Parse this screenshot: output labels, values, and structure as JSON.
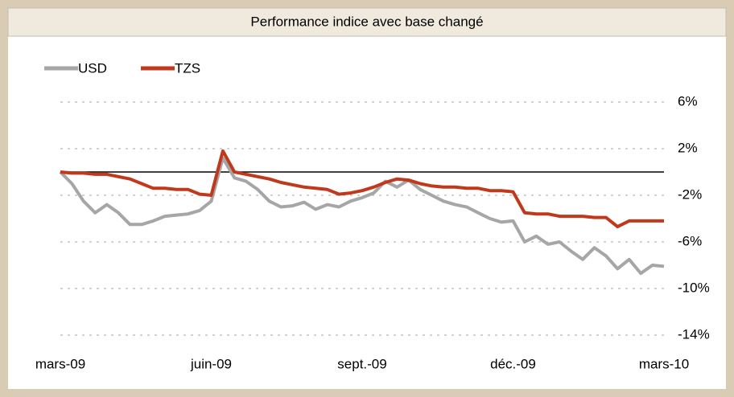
{
  "chart_data": {
    "type": "line",
    "title": "Performance indice avec base changé",
    "categories": [
      "mars-09",
      null,
      null,
      null,
      null,
      null,
      null,
      null,
      null,
      null,
      null,
      null,
      null,
      "juin-09",
      null,
      null,
      null,
      null,
      null,
      null,
      null,
      null,
      null,
      null,
      null,
      null,
      "sept.-09",
      null,
      null,
      null,
      null,
      null,
      null,
      null,
      null,
      null,
      null,
      null,
      null,
      "déc.-09",
      null,
      null,
      null,
      null,
      null,
      null,
      null,
      null,
      null,
      null,
      null,
      null,
      "mars-10"
    ],
    "series": [
      {
        "name": "USD",
        "color": "#a6a6a6",
        "values": [
          0,
          -1,
          -2.5,
          -3.5,
          -2.8,
          -3.5,
          -4.5,
          -4.5,
          -4.2,
          -3.8,
          -3.7,
          -3.6,
          -3.3,
          -2.5,
          1.2,
          -0.5,
          -0.8,
          -1.5,
          -2.5,
          -3,
          -2.9,
          -2.6,
          -3.2,
          -2.8,
          -3,
          -2.5,
          -2.2,
          -1.8,
          -0.8,
          -1.3,
          -0.7,
          -1.5,
          -2,
          -2.5,
          -2.8,
          -3,
          -3.5,
          -4,
          -4.3,
          -4.2,
          -6,
          -5.5,
          -6.2,
          -6,
          -6.8,
          -7.5,
          -6.5,
          -7.2,
          -8.3,
          -7.5,
          -8.7,
          -8,
          -8.1
        ]
      },
      {
        "name": "TZS",
        "color": "#c0391c",
        "values": [
          0,
          -0.1,
          -0.1,
          -0.2,
          -0.2,
          -0.4,
          -0.6,
          -1,
          -1.4,
          -1.4,
          -1.5,
          -1.5,
          -1.9,
          -2,
          1.8,
          0,
          -0.2,
          -0.4,
          -0.6,
          -0.9,
          -1.1,
          -1.3,
          -1.4,
          -1.5,
          -1.9,
          -1.8,
          -1.6,
          -1.3,
          -0.9,
          -0.6,
          -0.7,
          -1,
          -1.2,
          -1.3,
          -1.3,
          -1.4,
          -1.4,
          -1.6,
          -1.6,
          -1.7,
          -3.5,
          -3.6,
          -3.6,
          -3.8,
          -3.8,
          -3.8,
          -3.9,
          -3.9,
          -4.7,
          -4.2,
          -4.2,
          -4.2,
          -4.2
        ]
      }
    ],
    "ylim": [
      -14,
      6
    ],
    "yticks": [
      {
        "value": 6,
        "label": "6%"
      },
      {
        "value": 2,
        "label": "2%"
      },
      {
        "value": -2,
        "label": "-2%"
      },
      {
        "value": -6,
        "label": "-6%"
      },
      {
        "value": -10,
        "label": "-10%"
      },
      {
        "value": -14,
        "label": "-14%"
      }
    ],
    "grid": true,
    "legend": "top-left"
  }
}
